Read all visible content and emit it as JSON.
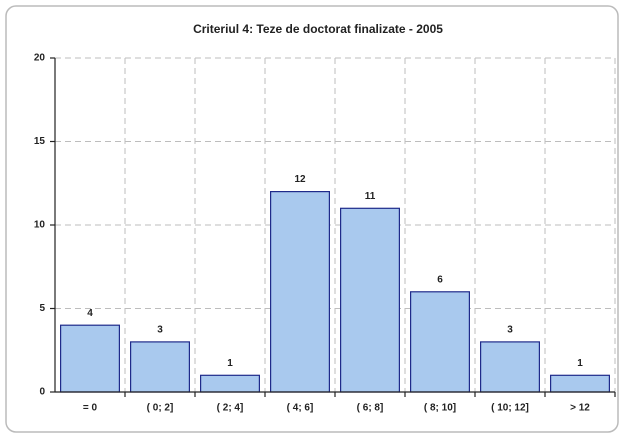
{
  "chart_data": {
    "type": "bar",
    "title": "Criteriul 4:  Teze de doctorat finalizate - 2005",
    "categories": [
      "= 0",
      "( 0; 2]",
      "( 2; 4]",
      "( 4; 6]",
      "( 6; 8]",
      "( 8; 10]",
      "( 10; 12]",
      "> 12"
    ],
    "values": [
      4,
      3,
      1,
      12,
      11,
      6,
      3,
      1
    ],
    "color": "#a9c9ee",
    "ylim": [
      0,
      20
    ],
    "yticks": [
      0,
      5,
      10,
      15,
      20
    ],
    "grid": true
  }
}
